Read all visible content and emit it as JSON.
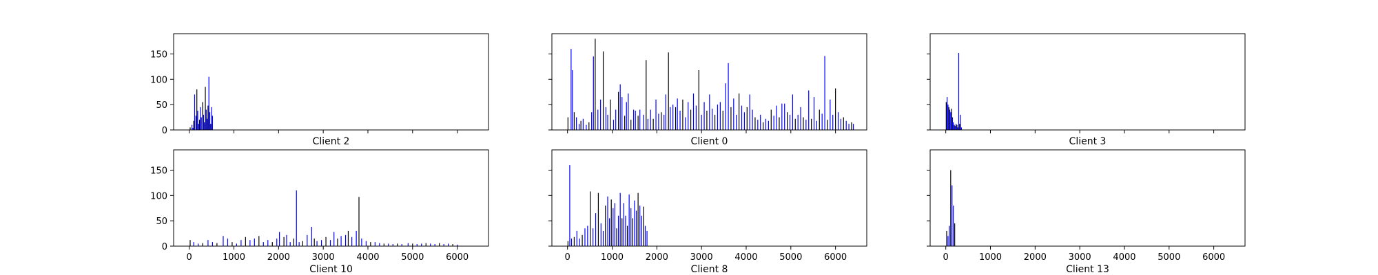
{
  "figure": {
    "bar_color": "#0000ff",
    "edge_color": "#000000",
    "background": "#ffffff"
  },
  "chart_data": [
    {
      "type": "bar",
      "xlabel": "Client 2",
      "xlim": [
        -350,
        6700
      ],
      "ylim": [
        0,
        190
      ],
      "xticks": [
        0,
        1000,
        2000,
        3000,
        4000,
        5000,
        6000
      ],
      "yticks": [
        0,
        50,
        100,
        150
      ],
      "show_xtick_labels": false,
      "show_ytick_labels": true,
      "points": [
        [
          20,
          5
        ],
        [
          60,
          10
        ],
        [
          80,
          4
        ],
        [
          100,
          18
        ],
        [
          120,
          70
        ],
        [
          150,
          28
        ],
        [
          170,
          80
        ],
        [
          190,
          38
        ],
        [
          210,
          12
        ],
        [
          230,
          20
        ],
        [
          250,
          45
        ],
        [
          270,
          25
        ],
        [
          300,
          55
        ],
        [
          320,
          30
        ],
        [
          340,
          15
        ],
        [
          360,
          85
        ],
        [
          380,
          40
        ],
        [
          400,
          22
        ],
        [
          420,
          48
        ],
        [
          440,
          105
        ],
        [
          460,
          35
        ],
        [
          480,
          12
        ],
        [
          500,
          45
        ],
        [
          520,
          28
        ]
      ],
      "grid": false
    },
    {
      "type": "bar",
      "xlabel": "Client 0",
      "xlim": [
        -350,
        6700
      ],
      "ylim": [
        0,
        190
      ],
      "xticks": [
        0,
        1000,
        2000,
        3000,
        4000,
        5000,
        6000
      ],
      "yticks": [
        0,
        50,
        100,
        150
      ],
      "show_xtick_labels": false,
      "show_ytick_labels": false,
      "points": [
        [
          10,
          25
        ],
        [
          80,
          160
        ],
        [
          110,
          118
        ],
        [
          150,
          35
        ],
        [
          200,
          25
        ],
        [
          260,
          12
        ],
        [
          300,
          18
        ],
        [
          350,
          22
        ],
        [
          420,
          10
        ],
        [
          480,
          15
        ],
        [
          540,
          35
        ],
        [
          580,
          145
        ],
        [
          620,
          180
        ],
        [
          680,
          40
        ],
        [
          740,
          60
        ],
        [
          800,
          155
        ],
        [
          860,
          45
        ],
        [
          900,
          30
        ],
        [
          960,
          60
        ],
        [
          1030,
          20
        ],
        [
          1080,
          40
        ],
        [
          1140,
          75
        ],
        [
          1180,
          90
        ],
        [
          1220,
          65
        ],
        [
          1280,
          28
        ],
        [
          1320,
          55
        ],
        [
          1360,
          72
        ],
        [
          1420,
          20
        ],
        [
          1480,
          40
        ],
        [
          1520,
          38
        ],
        [
          1580,
          28
        ],
        [
          1620,
          40
        ],
        [
          1700,
          30
        ],
        [
          1760,
          138
        ],
        [
          1800,
          22
        ],
        [
          1860,
          40
        ],
        [
          1920,
          22
        ],
        [
          1980,
          60
        ],
        [
          2040,
          32
        ],
        [
          2100,
          35
        ],
        [
          2160,
          30
        ],
        [
          2200,
          70
        ],
        [
          2260,
          153
        ],
        [
          2300,
          45
        ],
        [
          2360,
          50
        ],
        [
          2420,
          45
        ],
        [
          2460,
          62
        ],
        [
          2520,
          38
        ],
        [
          2580,
          60
        ],
        [
          2640,
          25
        ],
        [
          2700,
          55
        ],
        [
          2760,
          40
        ],
        [
          2820,
          72
        ],
        [
          2880,
          48
        ],
        [
          2940,
          118
        ],
        [
          3000,
          30
        ],
        [
          3060,
          55
        ],
        [
          3120,
          38
        ],
        [
          3180,
          70
        ],
        [
          3240,
          42
        ],
        [
          3300,
          30
        ],
        [
          3360,
          50
        ],
        [
          3420,
          55
        ],
        [
          3480,
          38
        ],
        [
          3540,
          92
        ],
        [
          3600,
          132
        ],
        [
          3660,
          45
        ],
        [
          3720,
          62
        ],
        [
          3780,
          30
        ],
        [
          3840,
          72
        ],
        [
          3900,
          48
        ],
        [
          3960,
          35
        ],
        [
          4020,
          45
        ],
        [
          4080,
          70
        ],
        [
          4140,
          40
        ],
        [
          4200,
          25
        ],
        [
          4260,
          20
        ],
        [
          4320,
          30
        ],
        [
          4380,
          15
        ],
        [
          4440,
          22
        ],
        [
          4500,
          18
        ],
        [
          4560,
          40
        ],
        [
          4620,
          28
        ],
        [
          4680,
          48
        ],
        [
          4740,
          25
        ],
        [
          4800,
          52
        ],
        [
          4860,
          52
        ],
        [
          4920,
          35
        ],
        [
          4980,
          30
        ],
        [
          5040,
          70
        ],
        [
          5100,
          22
        ],
        [
          5160,
          30
        ],
        [
          5220,
          45
        ],
        [
          5280,
          25
        ],
        [
          5340,
          20
        ],
        [
          5400,
          78
        ],
        [
          5460,
          22
        ],
        [
          5520,
          65
        ],
        [
          5580,
          18
        ],
        [
          5640,
          40
        ],
        [
          5700,
          32
        ],
        [
          5760,
          146
        ],
        [
          5820,
          20
        ],
        [
          5880,
          60
        ],
        [
          5940,
          30
        ],
        [
          6000,
          82
        ],
        [
          6060,
          35
        ],
        [
          6120,
          22
        ],
        [
          6180,
          25
        ],
        [
          6240,
          18
        ],
        [
          6300,
          12
        ],
        [
          6360,
          15
        ],
        [
          6400,
          12
        ]
      ],
      "grid": false
    },
    {
      "type": "bar",
      "xlabel": "Client 3",
      "xlim": [
        -350,
        6700
      ],
      "ylim": [
        0,
        190
      ],
      "xticks": [
        0,
        1000,
        2000,
        3000,
        4000,
        5000,
        6000
      ],
      "yticks": [
        0,
        50,
        100,
        150
      ],
      "show_xtick_labels": false,
      "show_ytick_labels": false,
      "points": [
        [
          10,
          55
        ],
        [
          30,
          65
        ],
        [
          50,
          50
        ],
        [
          70,
          45
        ],
        [
          90,
          40
        ],
        [
          110,
          35
        ],
        [
          130,
          42
        ],
        [
          150,
          25
        ],
        [
          170,
          15
        ],
        [
          190,
          10
        ],
        [
          210,
          8
        ],
        [
          230,
          12
        ],
        [
          250,
          10
        ],
        [
          270,
          5
        ],
        [
          290,
          152
        ],
        [
          310,
          12
        ],
        [
          330,
          30
        ],
        [
          350,
          5
        ]
      ],
      "grid": false
    },
    {
      "type": "bar",
      "xlabel": "Client 10",
      "xlim": [
        -350,
        6700
      ],
      "ylim": [
        0,
        190
      ],
      "xticks": [
        0,
        1000,
        2000,
        3000,
        4000,
        5000,
        6000
      ],
      "yticks": [
        0,
        50,
        100,
        150
      ],
      "show_xtick_labels": true,
      "show_ytick_labels": true,
      "points": [
        [
          20,
          12
        ],
        [
          100,
          8
        ],
        [
          200,
          5
        ],
        [
          300,
          6
        ],
        [
          420,
          12
        ],
        [
          520,
          8
        ],
        [
          620,
          6
        ],
        [
          760,
          20
        ],
        [
          860,
          15
        ],
        [
          960,
          8
        ],
        [
          1060,
          5
        ],
        [
          1160,
          12
        ],
        [
          1260,
          18
        ],
        [
          1360,
          12
        ],
        [
          1460,
          15
        ],
        [
          1560,
          20
        ],
        [
          1660,
          8
        ],
        [
          1760,
          12
        ],
        [
          1860,
          8
        ],
        [
          1960,
          15
        ],
        [
          2020,
          28
        ],
        [
          2120,
          18
        ],
        [
          2180,
          22
        ],
        [
          2260,
          8
        ],
        [
          2340,
          15
        ],
        [
          2400,
          110
        ],
        [
          2460,
          8
        ],
        [
          2540,
          10
        ],
        [
          2640,
          22
        ],
        [
          2740,
          38
        ],
        [
          2800,
          15
        ],
        [
          2860,
          10
        ],
        [
          2960,
          12
        ],
        [
          3060,
          18
        ],
        [
          3160,
          12
        ],
        [
          3240,
          28
        ],
        [
          3320,
          15
        ],
        [
          3400,
          20
        ],
        [
          3500,
          22
        ],
        [
          3560,
          30
        ],
        [
          3640,
          18
        ],
        [
          3740,
          30
        ],
        [
          3800,
          97
        ],
        [
          3860,
          15
        ],
        [
          3960,
          10
        ],
        [
          4060,
          8
        ],
        [
          4160,
          8
        ],
        [
          4260,
          6
        ],
        [
          4360,
          5
        ],
        [
          4460,
          5
        ],
        [
          4560,
          4
        ],
        [
          4660,
          5
        ],
        [
          4760,
          4
        ],
        [
          4900,
          6
        ],
        [
          5000,
          5
        ],
        [
          5100,
          4
        ],
        [
          5200,
          5
        ],
        [
          5300,
          6
        ],
        [
          5400,
          5
        ],
        [
          5500,
          4
        ],
        [
          5600,
          6
        ],
        [
          5700,
          4
        ],
        [
          5800,
          5
        ],
        [
          5900,
          4
        ],
        [
          6000,
          3
        ]
      ],
      "grid": false
    },
    {
      "type": "bar",
      "xlabel": "Client 8",
      "xlim": [
        -350,
        6700
      ],
      "ylim": [
        0,
        190
      ],
      "xticks": [
        0,
        1000,
        2000,
        3000,
        4000,
        5000,
        6000
      ],
      "yticks": [
        0,
        50,
        100,
        150
      ],
      "show_xtick_labels": true,
      "show_ytick_labels": false,
      "points": [
        [
          10,
          10
        ],
        [
          50,
          160
        ],
        [
          90,
          15
        ],
        [
          150,
          18
        ],
        [
          210,
          30
        ],
        [
          270,
          15
        ],
        [
          330,
          22
        ],
        [
          390,
          35
        ],
        [
          450,
          40
        ],
        [
          510,
          108
        ],
        [
          570,
          35
        ],
        [
          630,
          65
        ],
        [
          690,
          105
        ],
        [
          750,
          45
        ],
        [
          800,
          30
        ],
        [
          850,
          80
        ],
        [
          900,
          98
        ],
        [
          940,
          55
        ],
        [
          980,
          92
        ],
        [
          1020,
          75
        ],
        [
          1060,
          85
        ],
        [
          1100,
          35
        ],
        [
          1140,
          60
        ],
        [
          1180,
          105
        ],
        [
          1220,
          55
        ],
        [
          1260,
          85
        ],
        [
          1300,
          60
        ],
        [
          1340,
          40
        ],
        [
          1380,
          102
        ],
        [
          1420,
          75
        ],
        [
          1460,
          55
        ],
        [
          1500,
          90
        ],
        [
          1540,
          70
        ],
        [
          1580,
          105
        ],
        [
          1620,
          80
        ],
        [
          1660,
          60
        ],
        [
          1700,
          78
        ],
        [
          1740,
          40
        ],
        [
          1780,
          30
        ]
      ],
      "grid": false
    },
    {
      "type": "bar",
      "xlabel": "Client 13",
      "xlim": [
        -350,
        6700
      ],
      "ylim": [
        0,
        190
      ],
      "xticks": [
        0,
        1000,
        2000,
        3000,
        4000,
        5000,
        6000
      ],
      "yticks": [
        0,
        50,
        100,
        150
      ],
      "show_xtick_labels": true,
      "show_ytick_labels": false,
      "points": [
        [
          20,
          30
        ],
        [
          50,
          20
        ],
        [
          80,
          40
        ],
        [
          110,
          150
        ],
        [
          140,
          120
        ],
        [
          170,
          80
        ],
        [
          200,
          45
        ]
      ],
      "grid": false
    }
  ]
}
